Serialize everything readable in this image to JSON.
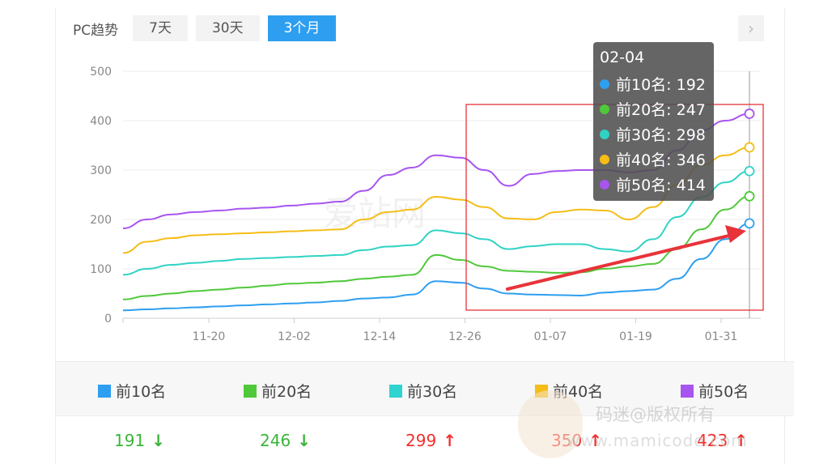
{
  "header": {
    "label": "PC趋势",
    "tabs": [
      "7天",
      "30天",
      "3个月"
    ],
    "active_tab": 2,
    "next_icon": "chevron-right-icon"
  },
  "tooltip": {
    "date": "02-04",
    "rows": [
      {
        "label": "前10名: 192",
        "color": "#2e9ff0"
      },
      {
        "label": "前20名: 247",
        "color": "#4fc93a"
      },
      {
        "label": "前30名: 298",
        "color": "#2fd3c4"
      },
      {
        "label": "前40名: 346",
        "color": "#f5bd16"
      },
      {
        "label": "前50名: 414",
        "color": "#a855f0"
      }
    ]
  },
  "watermark": {
    "chart": "爱站网",
    "credit": "码迷@版权所有",
    "site": "www.mamicode.com"
  },
  "legend": [
    {
      "label": "前10名",
      "color": "#2e9ff0"
    },
    {
      "label": "前20名",
      "color": "#4fc93a"
    },
    {
      "label": "前30名",
      "color": "#2fd3d0"
    },
    {
      "label": "前40名",
      "color": "#f5bd16"
    },
    {
      "label": "前50名",
      "color": "#a855f0"
    }
  ],
  "values": [
    {
      "value": "191",
      "trend": "down"
    },
    {
      "value": "246",
      "trend": "down"
    },
    {
      "value": "299",
      "trend": "up"
    },
    {
      "value": "350",
      "trend": "up"
    },
    {
      "value": "423",
      "trend": "up"
    }
  ],
  "chart_data": {
    "type": "line",
    "x_ticks": [
      "11-20",
      "12-02",
      "12-14",
      "12-26",
      "01-07",
      "01-19",
      "01-31"
    ],
    "y_ticks": [
      "0",
      "100",
      "200",
      "300",
      "400",
      "500"
    ],
    "ylim": [
      0,
      500
    ],
    "grid": true,
    "series": [
      {
        "name": "前10名",
        "color": "#2e9ff0",
        "values": [
          16,
          18,
          20,
          22,
          24,
          26,
          28,
          30,
          32,
          35,
          40,
          42,
          48,
          75,
          72,
          60,
          50,
          48,
          47,
          46,
          52,
          55,
          58,
          80,
          120,
          160,
          192
        ]
      },
      {
        "name": "前20名",
        "color": "#4fc93a",
        "values": [
          38,
          45,
          50,
          55,
          58,
          62,
          66,
          70,
          72,
          75,
          80,
          84,
          88,
          128,
          118,
          105,
          96,
          94,
          92,
          93,
          100,
          105,
          110,
          140,
          180,
          220,
          247
        ]
      },
      {
        "name": "前30名",
        "color": "#2fd3c4",
        "values": [
          88,
          100,
          108,
          112,
          116,
          120,
          122,
          124,
          126,
          128,
          138,
          145,
          148,
          178,
          172,
          160,
          140,
          146,
          150,
          150,
          140,
          135,
          160,
          205,
          245,
          275,
          298
        ]
      },
      {
        "name": "前40名",
        "color": "#f5bd16",
        "values": [
          132,
          155,
          162,
          168,
          170,
          172,
          174,
          176,
          178,
          180,
          200,
          215,
          220,
          246,
          240,
          225,
          202,
          200,
          215,
          220,
          218,
          200,
          225,
          270,
          310,
          330,
          346
        ]
      },
      {
        "name": "前50名",
        "color": "#a855f0",
        "values": [
          182,
          200,
          210,
          215,
          218,
          222,
          224,
          228,
          232,
          236,
          258,
          290,
          305,
          330,
          325,
          300,
          268,
          292,
          298,
          300,
          300,
          295,
          300,
          340,
          380,
          400,
          414
        ]
      }
    ],
    "highlight_box": true,
    "annotation_arrow": true
  }
}
